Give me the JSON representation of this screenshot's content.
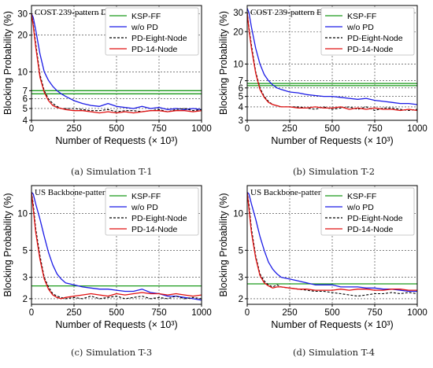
{
  "panel_captions": [
    "(a)  Simulation T-1",
    "(b)  Simulation T-2",
    "(c)  Simulation T-3",
    "(d)  Simulation T-4"
  ],
  "colors": {
    "KSP-FF": "#1a9a1a",
    "w/o PD": "#1c1ce6",
    "PD-Eight-Node": "#000000",
    "PD-14-Node": "#e01010"
  },
  "chart_data": [
    {
      "type": "line",
      "title": "COST 239-pattern D",
      "xlabel": "Number of Requests (× 10³)",
      "ylabel": "Blocking Probability (%)",
      "xlim": [
        0,
        1000
      ],
      "ylim": [
        4,
        35
      ],
      "yscale": "log",
      "xticks": [
        0,
        250,
        500,
        750,
        1000
      ],
      "yticks": [
        4,
        5,
        6,
        7,
        10,
        20,
        30
      ],
      "grid": true,
      "legend_position": "top-right",
      "series": [
        {
          "name": "KSP-FF",
          "x": [
            0,
            1000
          ],
          "y": [
            7,
            7
          ],
          "linestyle": "solid",
          "extra_hline": 6.6
        },
        {
          "name": "w/o PD",
          "linestyle": "solid",
          "x": [
            0,
            10,
            25,
            50,
            75,
            100,
            125,
            150,
            175,
            200,
            250,
            300,
            350,
            400,
            450,
            500,
            550,
            600,
            650,
            700,
            750,
            800,
            850,
            900,
            950,
            1000
          ],
          "y": [
            30,
            28,
            22,
            14,
            10,
            8.5,
            7.6,
            7.0,
            6.6,
            6.3,
            5.8,
            5.5,
            5.3,
            5.2,
            5.5,
            5.2,
            5.1,
            5.0,
            5.2,
            5.0,
            5.1,
            4.9,
            5.0,
            4.9,
            5.0,
            4.9
          ]
        },
        {
          "name": "PD-Eight-Node",
          "linestyle": "dashed",
          "x": [
            0,
            10,
            25,
            50,
            75,
            100,
            125,
            150,
            175,
            200,
            250,
            300,
            350,
            400,
            450,
            500,
            550,
            600,
            650,
            700,
            750,
            800,
            850,
            900,
            950,
            1000
          ],
          "y": [
            30,
            25,
            17,
            9.5,
            7.0,
            6.0,
            5.5,
            5.2,
            5.0,
            5.0,
            5.0,
            4.9,
            4.8,
            4.8,
            4.9,
            4.7,
            4.8,
            4.8,
            4.7,
            4.8,
            4.9,
            4.7,
            4.9,
            5.0,
            4.8,
            4.9
          ]
        },
        {
          "name": "PD-14-Node",
          "linestyle": "solid",
          "x": [
            0,
            10,
            25,
            50,
            75,
            100,
            125,
            150,
            175,
            200,
            250,
            300,
            350,
            400,
            450,
            500,
            550,
            600,
            650,
            700,
            750,
            800,
            850,
            900,
            950,
            1000
          ],
          "y": [
            30,
            24,
            16,
            9.0,
            6.8,
            5.8,
            5.3,
            5.1,
            5.0,
            4.9,
            4.8,
            4.8,
            4.7,
            4.6,
            4.7,
            4.6,
            4.7,
            4.6,
            4.7,
            4.8,
            4.8,
            4.7,
            4.8,
            4.8,
            4.7,
            4.8
          ]
        }
      ]
    },
    {
      "type": "line",
      "title": "COST 239-pattern E",
      "xlabel": "Number of Requests (× 10³)",
      "ylabel": "Blocking Probability (%)",
      "xlim": [
        0,
        1000
      ],
      "ylim": [
        3,
        35
      ],
      "yscale": "log",
      "xticks": [
        0,
        250,
        500,
        750,
        1000
      ],
      "yticks": [
        3,
        4,
        5,
        6,
        7,
        10,
        20,
        30
      ],
      "grid": true,
      "legend_position": "top-right",
      "series": [
        {
          "name": "KSP-FF",
          "x": [
            0,
            1000
          ],
          "y": [
            6.6,
            6.6
          ],
          "linestyle": "solid",
          "extra_hline": 6.3
        },
        {
          "name": "w/o PD",
          "linestyle": "solid",
          "x": [
            0,
            10,
            25,
            50,
            75,
            100,
            125,
            150,
            175,
            200,
            250,
            300,
            350,
            400,
            450,
            500,
            550,
            600,
            650,
            700,
            750,
            800,
            850,
            900,
            950,
            1000
          ],
          "y": [
            33,
            30,
            22,
            14,
            10,
            8.0,
            7.0,
            6.4,
            6.0,
            5.8,
            5.5,
            5.4,
            5.2,
            5.1,
            5.0,
            5.0,
            4.9,
            4.8,
            4.7,
            4.8,
            4.6,
            4.5,
            4.4,
            4.3,
            4.3,
            4.2
          ]
        },
        {
          "name": "PD-Eight-Node",
          "linestyle": "dashed",
          "x": [
            0,
            10,
            25,
            50,
            75,
            100,
            125,
            150,
            175,
            200,
            250,
            300,
            350,
            400,
            450,
            500,
            550,
            600,
            650,
            700,
            750,
            800,
            850,
            900,
            950,
            1000
          ],
          "y": [
            30,
            22,
            15,
            8.5,
            6.0,
            5.0,
            4.5,
            4.2,
            4.1,
            4.0,
            4.0,
            4.0,
            3.9,
            3.8,
            4.0,
            3.8,
            3.9,
            4.0,
            3.8,
            4.0,
            3.7,
            3.9,
            3.9,
            3.8,
            3.7,
            3.8
          ]
        },
        {
          "name": "PD-14-Node",
          "linestyle": "solid",
          "x": [
            0,
            10,
            25,
            50,
            75,
            100,
            125,
            150,
            175,
            200,
            250,
            300,
            350,
            400,
            450,
            500,
            550,
            600,
            650,
            700,
            750,
            800,
            850,
            900,
            950,
            1000
          ],
          "y": [
            30,
            21,
            14,
            8.2,
            5.8,
            4.9,
            4.4,
            4.2,
            4.1,
            4.0,
            4.0,
            3.9,
            3.9,
            4.0,
            3.9,
            3.9,
            4.0,
            3.8,
            3.9,
            3.8,
            3.9,
            3.8,
            3.8,
            3.7,
            3.8,
            3.7
          ]
        }
      ]
    },
    {
      "type": "line",
      "title": "US Backbone-pattern F",
      "xlabel": "Number of Requests (× 10³)",
      "ylabel": "Blocking Probability (%)",
      "xlim": [
        0,
        1000
      ],
      "ylim": [
        1.8,
        17
      ],
      "yscale": "log",
      "xticks": [
        0,
        250,
        500,
        750,
        1000
      ],
      "yticks": [
        2,
        3,
        5,
        10
      ],
      "grid": true,
      "legend_position": "top-right",
      "series": [
        {
          "name": "KSP-FF",
          "x": [
            0,
            1000
          ],
          "y": [
            2.55,
            2.55
          ],
          "linestyle": "solid"
        },
        {
          "name": "w/o PD",
          "linestyle": "solid",
          "x": [
            0,
            10,
            25,
            50,
            75,
            100,
            125,
            150,
            175,
            200,
            250,
            300,
            350,
            400,
            450,
            500,
            550,
            600,
            650,
            700,
            750,
            800,
            850,
            900,
            950,
            1000
          ],
          "y": [
            15,
            14.5,
            12,
            9,
            6.5,
            4.8,
            3.8,
            3.2,
            2.9,
            2.7,
            2.6,
            2.5,
            2.45,
            2.4,
            2.4,
            2.35,
            2.3,
            2.3,
            2.4,
            2.25,
            2.2,
            2.1,
            2.1,
            2.05,
            2.0,
            1.95
          ]
        },
        {
          "name": "PD-Eight-Node",
          "linestyle": "dashed",
          "x": [
            0,
            10,
            25,
            50,
            75,
            100,
            125,
            150,
            175,
            200,
            250,
            300,
            350,
            400,
            450,
            500,
            550,
            600,
            650,
            700,
            750,
            800,
            850,
            900,
            950,
            1000
          ],
          "y": [
            15,
            12,
            7.5,
            4.5,
            3.0,
            2.5,
            2.2,
            2.1,
            2.05,
            2.0,
            2.05,
            2.0,
            2.1,
            2.0,
            2.05,
            2.1,
            2.0,
            2.05,
            2.1,
            2.0,
            2.05,
            2.0,
            2.1,
            2.0,
            2.05,
            2.0
          ]
        },
        {
          "name": "PD-14-Node",
          "linestyle": "solid",
          "x": [
            0,
            10,
            25,
            50,
            75,
            100,
            125,
            150,
            175,
            200,
            250,
            300,
            350,
            400,
            450,
            500,
            550,
            600,
            650,
            700,
            750,
            800,
            850,
            900,
            950,
            1000
          ],
          "y": [
            15,
            11,
            7.0,
            4.2,
            2.9,
            2.4,
            2.15,
            2.05,
            2.0,
            2.05,
            2.1,
            2.15,
            2.2,
            2.15,
            2.1,
            2.2,
            2.15,
            2.2,
            2.25,
            2.2,
            2.2,
            2.15,
            2.2,
            2.15,
            2.1,
            2.15
          ]
        }
      ]
    },
    {
      "type": "line",
      "title": "US Backbone-pattern G",
      "xlabel": "Number of Requests (× 10³)",
      "ylabel": "Blocking Probability (%)",
      "xlim": [
        0,
        1000
      ],
      "ylim": [
        1.8,
        17
      ],
      "yscale": "log",
      "xticks": [
        0,
        250,
        500,
        750,
        1000
      ],
      "yticks": [
        2,
        3,
        5,
        10
      ],
      "grid": true,
      "legend_position": "top-right",
      "series": [
        {
          "name": "KSP-FF",
          "x": [
            0,
            1000
          ],
          "y": [
            2.65,
            2.65
          ],
          "linestyle": "solid"
        },
        {
          "name": "w/o PD",
          "linestyle": "solid",
          "x": [
            0,
            10,
            25,
            50,
            75,
            100,
            125,
            150,
            175,
            200,
            250,
            300,
            350,
            400,
            450,
            500,
            550,
            600,
            650,
            700,
            750,
            800,
            850,
            900,
            950,
            1000
          ],
          "y": [
            15,
            14.5,
            12,
            9,
            6.5,
            5.0,
            4.0,
            3.5,
            3.2,
            3.0,
            2.9,
            2.8,
            2.7,
            2.6,
            2.6,
            2.6,
            2.5,
            2.5,
            2.5,
            2.45,
            2.45,
            2.4,
            2.4,
            2.35,
            2.3,
            2.3
          ]
        },
        {
          "name": "PD-Eight-Node",
          "linestyle": "dashed",
          "x": [
            0,
            10,
            25,
            50,
            75,
            100,
            125,
            150,
            175,
            200,
            250,
            300,
            350,
            400,
            450,
            500,
            550,
            600,
            650,
            700,
            750,
            800,
            850,
            900,
            950,
            1000
          ],
          "y": [
            15,
            12,
            7.5,
            4.5,
            3.2,
            2.8,
            2.6,
            2.5,
            2.6,
            2.5,
            2.45,
            2.4,
            2.35,
            2.3,
            2.3,
            2.25,
            2.2,
            2.15,
            2.1,
            2.15,
            2.2,
            2.2,
            2.25,
            2.2,
            2.25,
            2.2
          ]
        },
        {
          "name": "PD-14-Node",
          "linestyle": "solid",
          "x": [
            0,
            10,
            25,
            50,
            75,
            100,
            125,
            150,
            175,
            200,
            250,
            300,
            350,
            400,
            450,
            500,
            550,
            600,
            650,
            700,
            750,
            800,
            850,
            900,
            950,
            1000
          ],
          "y": [
            15,
            11,
            7.0,
            4.3,
            3.1,
            2.7,
            2.55,
            2.45,
            2.5,
            2.5,
            2.45,
            2.4,
            2.4,
            2.35,
            2.35,
            2.35,
            2.4,
            2.35,
            2.4,
            2.4,
            2.35,
            2.35,
            2.4,
            2.4,
            2.35,
            2.35
          ]
        }
      ]
    }
  ]
}
